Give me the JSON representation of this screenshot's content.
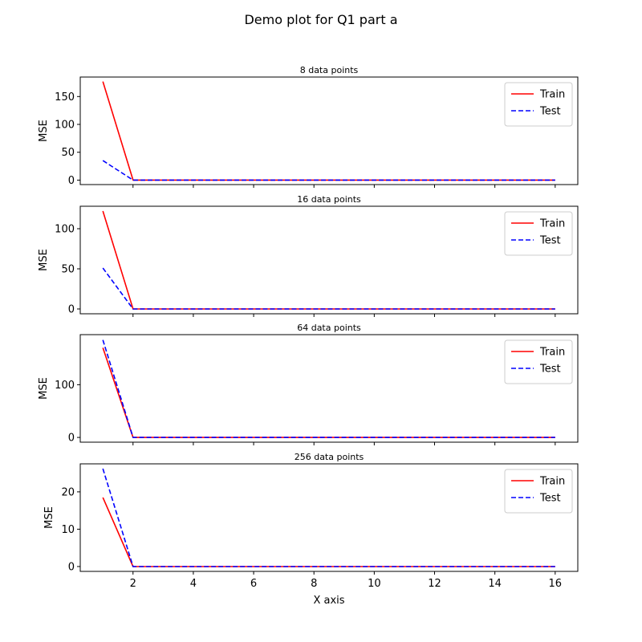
{
  "figure": {
    "title": "Demo plot for Q1 part a"
  },
  "chart_data": [
    {
      "type": "line",
      "title": "8 data points",
      "xlabel": "",
      "ylabel": "MSE",
      "x": [
        1,
        2,
        3,
        4,
        5,
        6,
        7,
        8,
        9,
        10,
        11,
        12,
        13,
        14,
        15,
        16
      ],
      "xlim": [
        0.25,
        16.75
      ],
      "ylim": [
        -8,
        185
      ],
      "yticks": [
        0,
        50,
        100,
        150
      ],
      "xticks": [
        2,
        4,
        6,
        8,
        10,
        12,
        14,
        16
      ],
      "show_xticklabels": false,
      "legend": {
        "position": "top-right"
      },
      "series": [
        {
          "name": "Train",
          "color": "#ff0000",
          "dash": "solid",
          "values": [
            177,
            0,
            0,
            0,
            0,
            0,
            0,
            0,
            0,
            0,
            0,
            0,
            0,
            0,
            0,
            0
          ]
        },
        {
          "name": "Test",
          "color": "#0000ff",
          "dash": "dashed",
          "values": [
            35,
            0,
            0,
            0,
            0,
            0,
            0,
            0,
            0,
            0,
            0,
            0,
            0,
            0,
            0,
            0
          ]
        }
      ]
    },
    {
      "type": "line",
      "title": "16 data points",
      "xlabel": "",
      "ylabel": "MSE",
      "x": [
        1,
        2,
        3,
        4,
        5,
        6,
        7,
        8,
        9,
        10,
        11,
        12,
        13,
        14,
        15,
        16
      ],
      "xlim": [
        0.25,
        16.75
      ],
      "ylim": [
        -6,
        128
      ],
      "yticks": [
        0,
        50,
        100
      ],
      "xticks": [
        2,
        4,
        6,
        8,
        10,
        12,
        14,
        16
      ],
      "show_xticklabels": false,
      "legend": {
        "position": "top-right"
      },
      "series": [
        {
          "name": "Train",
          "color": "#ff0000",
          "dash": "solid",
          "values": [
            122,
            0,
            0,
            0,
            0,
            0,
            0,
            0,
            0,
            0,
            0,
            0,
            0,
            0,
            0,
            0
          ]
        },
        {
          "name": "Test",
          "color": "#0000ff",
          "dash": "dashed",
          "values": [
            51,
            0,
            0,
            0,
            0,
            0,
            0,
            0,
            0,
            0,
            0,
            0,
            0,
            0,
            0,
            0
          ]
        }
      ]
    },
    {
      "type": "line",
      "title": "64 data points",
      "xlabel": "",
      "ylabel": "MSE",
      "x": [
        1,
        2,
        3,
        4,
        5,
        6,
        7,
        8,
        9,
        10,
        11,
        12,
        13,
        14,
        15,
        16
      ],
      "xlim": [
        0.25,
        16.75
      ],
      "ylim": [
        -9,
        195
      ],
      "yticks": [
        0,
        100
      ],
      "xticks": [
        2,
        4,
        6,
        8,
        10,
        12,
        14,
        16
      ],
      "show_xticklabels": false,
      "legend": {
        "position": "top-right"
      },
      "series": [
        {
          "name": "Train",
          "color": "#ff0000",
          "dash": "solid",
          "values": [
            170,
            0,
            0,
            0,
            0,
            0,
            0,
            0,
            0,
            0,
            0,
            0,
            0,
            0,
            0,
            0
          ]
        },
        {
          "name": "Test",
          "color": "#0000ff",
          "dash": "dashed",
          "values": [
            185,
            0,
            0,
            0,
            0,
            0,
            0,
            0,
            0,
            0,
            0,
            0,
            0,
            0,
            0,
            0
          ]
        }
      ]
    },
    {
      "type": "line",
      "title": "256 data points",
      "xlabel": "X axis",
      "ylabel": "MSE",
      "x": [
        1,
        2,
        3,
        4,
        5,
        6,
        7,
        8,
        9,
        10,
        11,
        12,
        13,
        14,
        15,
        16
      ],
      "xlim": [
        0.25,
        16.75
      ],
      "ylim": [
        -1.3,
        27.5
      ],
      "yticks": [
        0,
        10,
        20
      ],
      "xticks": [
        2,
        4,
        6,
        8,
        10,
        12,
        14,
        16
      ],
      "show_xticklabels": true,
      "legend": {
        "position": "top-right"
      },
      "series": [
        {
          "name": "Train",
          "color": "#ff0000",
          "dash": "solid",
          "values": [
            18.5,
            0,
            0,
            0,
            0,
            0,
            0,
            0,
            0,
            0,
            0,
            0,
            0,
            0,
            0,
            0
          ]
        },
        {
          "name": "Test",
          "color": "#0000ff",
          "dash": "dashed",
          "values": [
            26.2,
            0,
            0,
            0,
            0,
            0,
            0,
            0,
            0,
            0,
            0,
            0,
            0,
            0,
            0,
            0
          ]
        }
      ]
    }
  ]
}
